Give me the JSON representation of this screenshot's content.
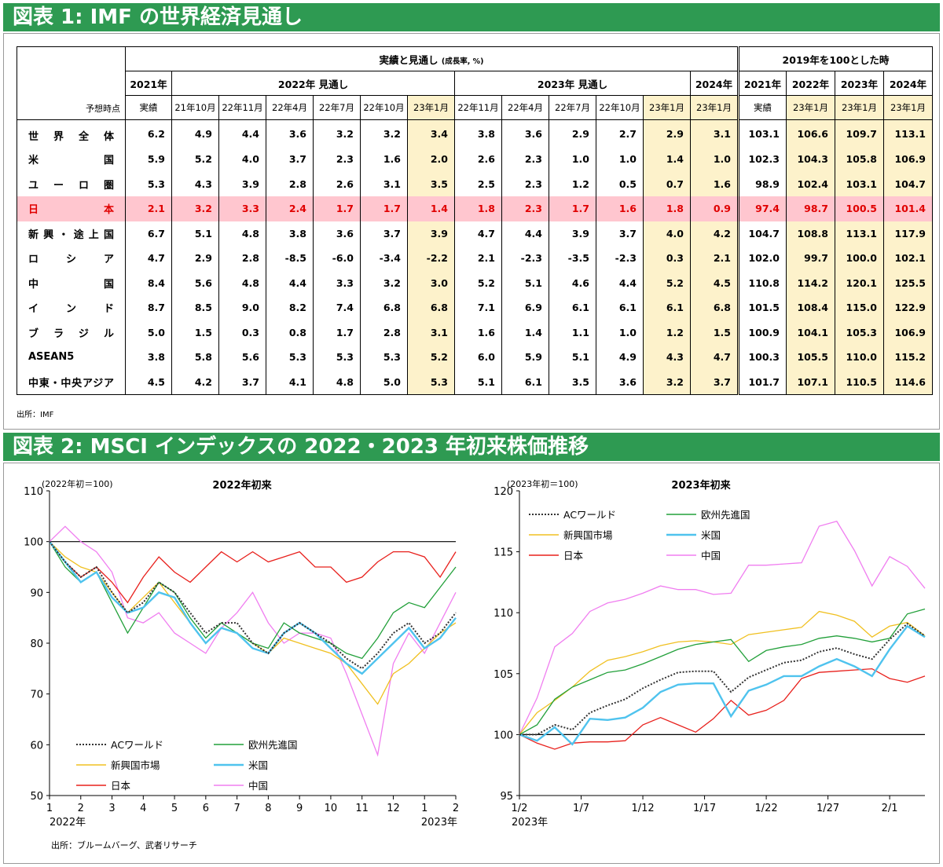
{
  "banner1": "図表 1: IMF の世界経済見通し",
  "banner2": "図表 2: MSCI インデックスの 2022・2023 年初来株価推移",
  "table": {
    "group_main": "実績と見通し",
    "group_main_unit": "(成長率, %)",
    "group_index": "2019年を100とした時",
    "year_headers": [
      "2021年",
      "2022年 見通し",
      "2023年 見通し",
      "2024年",
      "2021年",
      "2022年",
      "2023年",
      "2024年"
    ],
    "row_header_label": "予想時点",
    "sub_headers": [
      "実績",
      "21年10月",
      "22年11月",
      "22年4月",
      "22年7月",
      "22年10月",
      "23年1月",
      "22年11月",
      "22年4月",
      "22年7月",
      "22年10月",
      "23年1月",
      "23年1月",
      "実績",
      "23年1月",
      "23年1月",
      "23年1月"
    ],
    "rows": [
      {
        "label": "世界全体",
        "values": [
          "6.2",
          "4.9",
          "4.4",
          "3.6",
          "3.2",
          "3.2",
          "3.4",
          "3.8",
          "3.6",
          "2.9",
          "2.7",
          "2.9",
          "3.1",
          "103.1",
          "106.6",
          "109.7",
          "113.1"
        ]
      },
      {
        "label": "米国",
        "values": [
          "5.9",
          "5.2",
          "4.0",
          "3.7",
          "2.3",
          "1.6",
          "2.0",
          "2.6",
          "2.3",
          "1.0",
          "1.0",
          "1.4",
          "1.0",
          "102.3",
          "104.3",
          "105.8",
          "106.9"
        ]
      },
      {
        "label": "ユーロ圏",
        "values": [
          "5.3",
          "4.3",
          "3.9",
          "2.8",
          "2.6",
          "3.1",
          "3.5",
          "2.5",
          "2.3",
          "1.2",
          "0.5",
          "0.7",
          "1.6",
          "98.9",
          "102.4",
          "103.1",
          "104.7"
        ]
      },
      {
        "label": "日本",
        "values": [
          "2.1",
          "3.2",
          "3.3",
          "2.4",
          "1.7",
          "1.7",
          "1.4",
          "1.8",
          "2.3",
          "1.7",
          "1.6",
          "1.8",
          "0.9",
          "97.4",
          "98.7",
          "100.5",
          "101.4"
        ]
      },
      {
        "label": "新興・途上国",
        "values": [
          "6.7",
          "5.1",
          "4.8",
          "3.8",
          "3.6",
          "3.7",
          "3.9",
          "4.7",
          "4.4",
          "3.9",
          "3.7",
          "4.0",
          "4.2",
          "104.7",
          "108.8",
          "113.1",
          "117.9"
        ]
      },
      {
        "label": "ロシア",
        "values": [
          "4.7",
          "2.9",
          "2.8",
          "-8.5",
          "-6.0",
          "-3.4",
          "-2.2",
          "2.1",
          "-2.3",
          "-3.5",
          "-2.3",
          "0.3",
          "2.1",
          "102.0",
          "99.7",
          "100.0",
          "102.1"
        ]
      },
      {
        "label": "中国",
        "values": [
          "8.4",
          "5.6",
          "4.8",
          "4.4",
          "3.3",
          "3.2",
          "3.0",
          "5.2",
          "5.1",
          "4.6",
          "4.4",
          "5.2",
          "4.5",
          "110.8",
          "114.2",
          "120.1",
          "125.5"
        ]
      },
      {
        "label": "インド",
        "values": [
          "8.7",
          "8.5",
          "9.0",
          "8.2",
          "7.4",
          "6.8",
          "6.8",
          "7.1",
          "6.9",
          "6.1",
          "6.1",
          "6.1",
          "6.8",
          "101.5",
          "108.4",
          "115.0",
          "122.9"
        ]
      },
      {
        "label": "ブラジル",
        "values": [
          "5.0",
          "1.5",
          "0.3",
          "0.8",
          "1.7",
          "2.8",
          "3.1",
          "1.6",
          "1.4",
          "1.1",
          "1.0",
          "1.2",
          "1.5",
          "100.9",
          "104.1",
          "105.3",
          "106.9"
        ]
      },
      {
        "label": "ASEAN5",
        "values": [
          "3.8",
          "5.8",
          "5.6",
          "5.3",
          "5.3",
          "5.3",
          "5.2",
          "6.0",
          "5.9",
          "5.1",
          "4.9",
          "4.3",
          "4.7",
          "100.3",
          "105.5",
          "110.0",
          "115.2"
        ]
      },
      {
        "label": "中東・中央アジア",
        "values": [
          "4.5",
          "4.2",
          "3.7",
          "4.1",
          "4.8",
          "5.0",
          "5.3",
          "5.1",
          "6.1",
          "3.5",
          "3.6",
          "3.2",
          "3.7",
          "101.7",
          "107.1",
          "110.5",
          "114.6"
        ]
      }
    ],
    "source": "出所：IMF"
  },
  "colors": {
    "banner": "#2e9a52",
    "highlight_yellow": "#fdf2cb",
    "japan_row": "#ffc6cf",
    "japan_text": "#e00000",
    "ac_world": "#333333",
    "europe": "#22a03a",
    "emerging": "#f0c020",
    "us": "#4fc3ee",
    "japan": "#e8201c",
    "china": "#f07ef0"
  },
  "chart_data": [
    {
      "type": "line",
      "title": "2022年初来",
      "ylabel": "(2022年初＝100)",
      "ylim": [
        50,
        110
      ],
      "yticks": [
        50,
        60,
        70,
        80,
        90,
        100,
        110
      ],
      "x_ticks": [
        "1",
        "2",
        "3",
        "4",
        "5",
        "6",
        "7",
        "8",
        "9",
        "10",
        "11",
        "12",
        "1",
        "2"
      ],
      "x_sub_left": "2022年",
      "x_sub_right": "2023年",
      "reference_line": 100,
      "legend": [
        "ACワールド",
        "欧州先進国",
        "新興国市場",
        "米国",
        "日本",
        "中国"
      ],
      "source": "出所：ブルームバーグ、武者リサーチ",
      "x_months": [
        0,
        0.5,
        1,
        1.5,
        2,
        2.5,
        3,
        3.5,
        4,
        4.5,
        5,
        5.5,
        6,
        6.5,
        7,
        7.5,
        8,
        8.5,
        9,
        9.5,
        10,
        10.5,
        11,
        11.5,
        12,
        12.5,
        13
      ],
      "series": [
        {
          "name": "ACワールド",
          "values": [
            100,
            96,
            93,
            95,
            90,
            86,
            88,
            92,
            90,
            86,
            82,
            84,
            84,
            80,
            78,
            82,
            84,
            82,
            80,
            77,
            75,
            78,
            82,
            84,
            80,
            82,
            86
          ]
        },
        {
          "name": "欧州先進国",
          "values": [
            100,
            95,
            92,
            94,
            88,
            82,
            87,
            92,
            90,
            85,
            81,
            84,
            82,
            80,
            79,
            84,
            82,
            81,
            80,
            78,
            77,
            81,
            86,
            88,
            87,
            91,
            95
          ]
        },
        {
          "name": "新興国市場",
          "values": [
            100,
            97,
            95,
            94,
            90,
            86,
            89,
            92,
            88,
            84,
            80,
            83,
            82,
            80,
            78,
            81,
            80,
            79,
            78,
            76,
            72,
            68,
            74,
            76,
            79,
            82,
            84
          ]
        },
        {
          "name": "米国",
          "values": [
            100,
            96,
            92,
            94,
            89,
            86,
            87,
            90,
            89,
            84,
            80,
            83,
            82,
            79,
            78,
            82,
            84,
            82,
            79,
            76,
            74,
            77,
            80,
            83,
            79,
            81,
            85
          ]
        },
        {
          "name": "日本",
          "values": [
            100,
            96,
            93,
            95,
            92,
            88,
            93,
            97,
            94,
            92,
            95,
            98,
            96,
            98,
            96,
            97,
            98,
            95,
            95,
            92,
            93,
            96,
            98,
            98,
            97,
            93,
            98
          ]
        },
        {
          "name": "中国",
          "values": [
            100,
            103,
            100,
            98,
            94,
            85,
            84,
            86,
            82,
            80,
            78,
            83,
            86,
            90,
            84,
            80,
            82,
            82,
            81,
            74,
            66,
            58,
            76,
            82,
            78,
            84,
            90
          ]
        }
      ]
    },
    {
      "type": "line",
      "title": "2023年初来",
      "ylabel": "(2023年初＝100)",
      "ylim": [
        95,
        120
      ],
      "yticks": [
        95,
        100,
        105,
        110,
        115,
        120
      ],
      "x_ticks": [
        "1/2",
        "1/7",
        "1/12",
        "1/17",
        "1/22",
        "1/27",
        "2/1"
      ],
      "x_sub_left": "2023年",
      "reference_line": 100,
      "legend": [
        "ACワールド",
        "欧州先進国",
        "新興国市場",
        "米国",
        "日本",
        "中国"
      ],
      "x_days": [
        0,
        1,
        2,
        3,
        4,
        5,
        6,
        7,
        8,
        9,
        10,
        11,
        12,
        13,
        14,
        15,
        16,
        17,
        18,
        19,
        20,
        21,
        22,
        23
      ],
      "series": [
        {
          "name": "ACワールド",
          "values": [
            100,
            100,
            100.8,
            100.4,
            101.8,
            102.4,
            102.9,
            103.8,
            104.5,
            105.1,
            105.2,
            105.2,
            103.5,
            104.7,
            105.3,
            105.9,
            106.1,
            106.8,
            107.1,
            106.6,
            106.2,
            107.8,
            109.1,
            108.1
          ]
        },
        {
          "name": "欧州先進国",
          "values": [
            100,
            100.8,
            102.9,
            103.9,
            104.5,
            105.1,
            105.3,
            105.8,
            106.4,
            107.0,
            107.4,
            107.6,
            107.8,
            106.0,
            106.9,
            107.2,
            107.4,
            107.9,
            108.1,
            107.9,
            107.6,
            107.9,
            109.9,
            110.3
          ]
        },
        {
          "name": "新興国市場",
          "values": [
            100,
            101.8,
            102.8,
            103.9,
            105.2,
            106.1,
            106.4,
            106.8,
            107.3,
            107.6,
            107.7,
            107.6,
            107.4,
            108.2,
            108.4,
            108.6,
            108.8,
            110.1,
            109.8,
            109.3,
            108.0,
            108.9,
            109.2,
            108.1
          ]
        },
        {
          "name": "米国",
          "values": [
            100,
            99.5,
            100.6,
            99.2,
            101.3,
            101.2,
            101.4,
            102.2,
            103.5,
            104.1,
            104.2,
            104.2,
            101.5,
            103.6,
            104.1,
            104.8,
            104.8,
            105.6,
            106.2,
            105.6,
            104.8,
            107.0,
            108.9,
            108.0
          ]
        },
        {
          "name": "日本",
          "values": [
            100,
            99.3,
            98.8,
            99.3,
            99.4,
            99.4,
            99.5,
            100.8,
            101.4,
            100.8,
            100.2,
            101.3,
            102.8,
            101.6,
            102.0,
            102.8,
            104.6,
            105.1,
            105.2,
            105.3,
            105.4,
            104.6,
            104.3,
            104.8
          ]
        },
        {
          "name": "中国",
          "values": [
            100,
            103.0,
            107.2,
            108.3,
            110.1,
            110.8,
            111.1,
            111.6,
            112.2,
            111.9,
            111.9,
            111.5,
            111.6,
            113.9,
            113.9,
            114.0,
            114.1,
            117.1,
            117.5,
            115.1,
            112.2,
            114.6,
            113.8,
            112.0
          ]
        }
      ]
    }
  ]
}
